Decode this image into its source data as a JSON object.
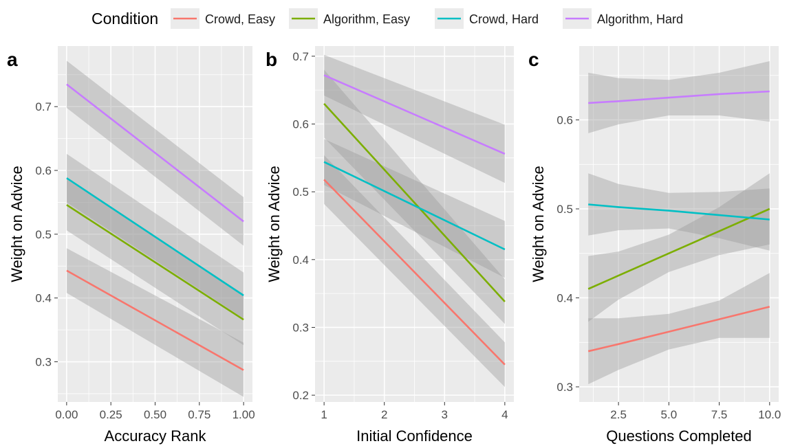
{
  "legend": {
    "title": "Condition",
    "entries": [
      {
        "name": "Crowd, Easy",
        "color": "#F8766D"
      },
      {
        "name": "Algorithm, Easy",
        "color": "#7CAE00"
      },
      {
        "name": "Crowd, Hard",
        "color": "#00BFC4"
      },
      {
        "name": "Algorithm, Hard",
        "color": "#C77CFF"
      }
    ]
  },
  "colors": {
    "panel_bg": "#EBEBEB",
    "grid": "#FFFFFF",
    "ribbon": "#999999"
  },
  "chart_data": [
    {
      "type": "line",
      "panel": "a",
      "xlabel": "Accuracy Rank",
      "ylabel": "Weight on Advice",
      "xlim": [
        -0.05,
        1.05
      ],
      "ylim": [
        0.237,
        0.795
      ],
      "xticks": [
        0.0,
        0.25,
        0.5,
        0.75,
        1.0
      ],
      "xtick_labels": [
        "0.00",
        "0.25",
        "0.50",
        "0.75",
        "1.00"
      ],
      "yticks": [
        0.3,
        0.4,
        0.5,
        0.6,
        0.7
      ],
      "ytick_labels": [
        "0.3",
        "0.4",
        "0.5",
        "0.6",
        "0.7"
      ],
      "grid": true,
      "series": [
        {
          "name": "Crowd, Easy",
          "x": [
            0,
            1
          ],
          "y": [
            0.443,
            0.287
          ],
          "lower": [
            0.408,
            0.245
          ],
          "upper": [
            0.478,
            0.33
          ]
        },
        {
          "name": "Algorithm, Easy",
          "x": [
            0,
            1
          ],
          "y": [
            0.546,
            0.366
          ],
          "lower": [
            0.506,
            0.326
          ],
          "upper": [
            0.586,
            0.406
          ]
        },
        {
          "name": "Crowd, Hard",
          "x": [
            0,
            1
          ],
          "y": [
            0.588,
            0.404
          ],
          "lower": [
            0.55,
            0.368
          ],
          "upper": [
            0.626,
            0.44
          ]
        },
        {
          "name": "Algorithm, Hard",
          "x": [
            0,
            1
          ],
          "y": [
            0.735,
            0.52
          ],
          "lower": [
            0.698,
            0.482
          ],
          "upper": [
            0.772,
            0.558
          ]
        }
      ]
    },
    {
      "type": "line",
      "panel": "b",
      "xlabel": "Initial Confidence",
      "ylabel": "Weight on Advice",
      "xlim": [
        0.85,
        4.15
      ],
      "ylim": [
        0.19,
        0.715
      ],
      "xticks": [
        1,
        2,
        3,
        4
      ],
      "xtick_labels": [
        "1",
        "2",
        "3",
        "4"
      ],
      "yticks": [
        0.2,
        0.3,
        0.4,
        0.5,
        0.6,
        0.7
      ],
      "ytick_labels": [
        "0.2",
        "0.3",
        "0.4",
        "0.5",
        "0.6",
        "0.7"
      ],
      "grid": true,
      "series": [
        {
          "name": "Crowd, Easy",
          "x": [
            1,
            4
          ],
          "y": [
            0.518,
            0.245
          ],
          "lower": [
            0.482,
            0.212
          ],
          "upper": [
            0.554,
            0.278
          ]
        },
        {
          "name": "Algorithm, Easy",
          "x": [
            1,
            4
          ],
          "y": [
            0.63,
            0.338
          ],
          "lower": [
            0.58,
            0.305
          ],
          "upper": [
            0.68,
            0.371
          ]
        },
        {
          "name": "Crowd, Hard",
          "x": [
            1,
            4
          ],
          "y": [
            0.544,
            0.415
          ],
          "lower": [
            0.51,
            0.373
          ],
          "upper": [
            0.578,
            0.457
          ]
        },
        {
          "name": "Algorithm, Hard",
          "x": [
            1,
            4
          ],
          "y": [
            0.672,
            0.556
          ],
          "lower": [
            0.642,
            0.513
          ],
          "upper": [
            0.702,
            0.599
          ]
        }
      ]
    },
    {
      "type": "line",
      "panel": "c",
      "xlabel": "Questions Completed",
      "ylabel": "Weight on Advice",
      "xlim": [
        0.55,
        10.45
      ],
      "ylim": [
        0.283,
        0.683
      ],
      "xticks": [
        2.5,
        5.0,
        7.5,
        10.0
      ],
      "xtick_labels": [
        "2.5",
        "5.0",
        "7.5",
        "10.0"
      ],
      "yticks": [
        0.3,
        0.4,
        0.5,
        0.6
      ],
      "ytick_labels": [
        "0.3",
        "0.4",
        "0.5",
        "0.6"
      ],
      "grid": true,
      "series": [
        {
          "name": "Crowd, Easy",
          "x": [
            1,
            2.5,
            5,
            7.5,
            10
          ],
          "y": [
            0.34,
            0.348,
            0.362,
            0.376,
            0.39
          ],
          "lower": [
            0.303,
            0.319,
            0.342,
            0.355,
            0.355
          ],
          "upper": [
            0.377,
            0.377,
            0.382,
            0.397,
            0.428
          ]
        },
        {
          "name": "Algorithm, Easy",
          "x": [
            1,
            2.5,
            5,
            7.5,
            10
          ],
          "y": [
            0.41,
            0.425,
            0.45,
            0.475,
            0.5
          ],
          "lower": [
            0.373,
            0.398,
            0.429,
            0.448,
            0.46
          ],
          "upper": [
            0.447,
            0.452,
            0.471,
            0.502,
            0.54
          ]
        },
        {
          "name": "Crowd, Hard",
          "x": [
            1,
            2.5,
            5,
            7.5,
            10
          ],
          "y": [
            0.505,
            0.502,
            0.498,
            0.493,
            0.488
          ],
          "lower": [
            0.47,
            0.476,
            0.478,
            0.467,
            0.453
          ],
          "upper": [
            0.54,
            0.528,
            0.518,
            0.519,
            0.523
          ]
        },
        {
          "name": "Algorithm, Hard",
          "x": [
            1,
            2.5,
            5,
            7.5,
            10
          ],
          "y": [
            0.619,
            0.621,
            0.625,
            0.629,
            0.632
          ],
          "lower": [
            0.585,
            0.595,
            0.605,
            0.605,
            0.598
          ],
          "upper": [
            0.653,
            0.647,
            0.645,
            0.653,
            0.666
          ]
        }
      ]
    }
  ]
}
